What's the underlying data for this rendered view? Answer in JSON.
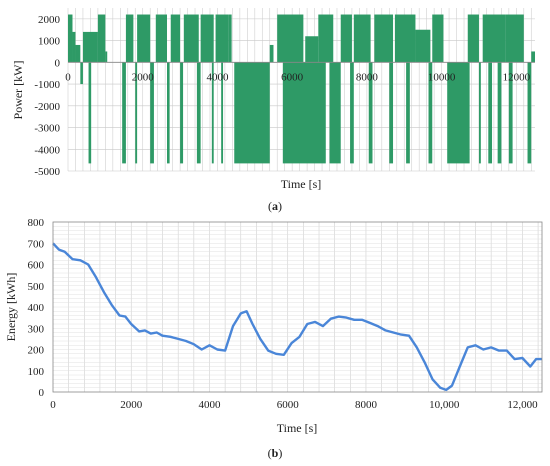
{
  "chart_data": [
    {
      "panel_label": "(a)",
      "type": "bar",
      "xlabel": "Time [s]",
      "ylabel": "Power [kW]",
      "xlim": [
        0,
        12500
      ],
      "ylim": [
        -5000,
        2500
      ],
      "x_ticks": [
        "0",
        "2000",
        "4000",
        "6000",
        "8000",
        "10000",
        "12000"
      ],
      "y_ticks": [
        "2000",
        "1000",
        "0",
        "-1000",
        "-2000",
        "-3000",
        "-4000",
        "-5000"
      ],
      "grid": true,
      "color": "#2e9a66",
      "segments": [
        {
          "x": [
            0,
            120
          ],
          "y": 2200
        },
        {
          "x": [
            120,
            200
          ],
          "y": 1400
        },
        {
          "x": [
            200,
            330
          ],
          "y": 800
        },
        {
          "x": [
            330,
            400
          ],
          "y": -1000
        },
        {
          "x": [
            400,
            800
          ],
          "y": 1400
        },
        {
          "x": [
            800,
            1000
          ],
          "y": 2200
        },
        {
          "x": [
            1000,
            1050
          ],
          "y": 500
        },
        {
          "x": [
            550,
            620
          ],
          "y": -4650
        },
        {
          "x": [
            1450,
            1550
          ],
          "y": -4650
        },
        {
          "x": [
            1550,
            1750
          ],
          "y": 2200
        },
        {
          "x": [
            1800,
            1850
          ],
          "y": -4650
        },
        {
          "x": [
            1850,
            2200
          ],
          "y": 2200
        },
        {
          "x": [
            2200,
            2300
          ],
          "y": -4650
        },
        {
          "x": [
            2350,
            2650
          ],
          "y": 2200
        },
        {
          "x": [
            2650,
            2720
          ],
          "y": -4650
        },
        {
          "x": [
            2750,
            3000
          ],
          "y": 2200
        },
        {
          "x": [
            3000,
            3080
          ],
          "y": -4650
        },
        {
          "x": [
            3100,
            3500
          ],
          "y": 2200
        },
        {
          "x": [
            3450,
            3550
          ],
          "y": -4650
        },
        {
          "x": [
            3550,
            3900
          ],
          "y": 2200
        },
        {
          "x": [
            3850,
            3900
          ],
          "y": -4650
        },
        {
          "x": [
            3950,
            4300
          ],
          "y": 2200
        },
        {
          "x": [
            4100,
            4150
          ],
          "y": -4650
        },
        {
          "x": [
            4300,
            4380
          ],
          "y": 2200
        },
        {
          "x": [
            4450,
            5400
          ],
          "y": -4650
        },
        {
          "x": [
            5400,
            5500
          ],
          "y": 800
        },
        {
          "x": [
            5600,
            6300
          ],
          "y": 2200
        },
        {
          "x": [
            5750,
            6900
          ],
          "y": -4650
        },
        {
          "x": [
            6350,
            6700
          ],
          "y": 1200
        },
        {
          "x": [
            6700,
            7100
          ],
          "y": 2200
        },
        {
          "x": [
            7000,
            7300
          ],
          "y": -4650
        },
        {
          "x": [
            7300,
            7600
          ],
          "y": 2200
        },
        {
          "x": [
            7550,
            7650
          ],
          "y": -4650
        },
        {
          "x": [
            7650,
            8100
          ],
          "y": 2200
        },
        {
          "x": [
            8050,
            8150
          ],
          "y": -4650
        },
        {
          "x": [
            8200,
            8700
          ],
          "y": 2200
        },
        {
          "x": [
            8600,
            8700
          ],
          "y": -4650
        },
        {
          "x": [
            8750,
            9300
          ],
          "y": 2200
        },
        {
          "x": [
            9050,
            9150
          ],
          "y": -4650
        },
        {
          "x": [
            9300,
            9700
          ],
          "y": 1500
        },
        {
          "x": [
            9650,
            9750
          ],
          "y": -4650
        },
        {
          "x": [
            9750,
            10050
          ],
          "y": 2200
        },
        {
          "x": [
            10150,
            10750
          ],
          "y": -4650
        },
        {
          "x": [
            10700,
            11000
          ],
          "y": 2200
        },
        {
          "x": [
            11000,
            11050
          ],
          "y": -4650
        },
        {
          "x": [
            11100,
            11700
          ],
          "y": 2200
        },
        {
          "x": [
            11250,
            11350
          ],
          "y": -4650
        },
        {
          "x": [
            11500,
            11600
          ],
          "y": -4650
        },
        {
          "x": [
            11700,
            12200
          ],
          "y": 2200
        },
        {
          "x": [
            11800,
            11900
          ],
          "y": -4650
        },
        {
          "x": [
            12300,
            12400
          ],
          "y": -4650
        },
        {
          "x": [
            12400,
            12500
          ],
          "y": 500
        }
      ]
    },
    {
      "panel_label": "(b)",
      "type": "line",
      "xlabel": "Time [s]",
      "ylabel": "Energy [kWh]",
      "xlim": [
        0,
        12500
      ],
      "ylim": [
        0,
        800
      ],
      "x_ticks": [
        "0",
        "2000",
        "4000",
        "6000",
        "8000",
        "10,000",
        "12,000"
      ],
      "y_ticks": [
        "800",
        "700",
        "600",
        "500",
        "400",
        "300",
        "200",
        "100",
        "0"
      ],
      "grid": true,
      "color": "#4a86d8",
      "series": [
        {
          "x": [
            0,
            150,
            300,
            500,
            700,
            900,
            1100,
            1300,
            1500,
            1700,
            1850,
            2000,
            2200,
            2350,
            2500,
            2650,
            2800,
            3000,
            3200,
            3400,
            3600,
            3800,
            4000,
            4200,
            4400,
            4600,
            4800,
            4950,
            5100,
            5300,
            5500,
            5700,
            5900,
            6100,
            6300,
            6500,
            6700,
            6900,
            7100,
            7300,
            7500,
            7700,
            7900,
            8100,
            8300,
            8500,
            8700,
            8900,
            9100,
            9300,
            9500,
            9700,
            9900,
            10050,
            10200,
            10400,
            10600,
            10800,
            11000,
            11200,
            11400,
            11600,
            11800,
            12000,
            12200,
            12350,
            12500
          ],
          "y": [
            700,
            670,
            660,
            625,
            620,
            600,
            540,
            470,
            410,
            360,
            355,
            320,
            285,
            290,
            275,
            280,
            265,
            260,
            250,
            240,
            225,
            200,
            220,
            200,
            195,
            310,
            370,
            380,
            320,
            250,
            195,
            180,
            175,
            230,
            260,
            320,
            330,
            310,
            345,
            355,
            350,
            340,
            340,
            325,
            310,
            290,
            280,
            270,
            265,
            210,
            140,
            60,
            20,
            10,
            30,
            120,
            210,
            220,
            200,
            210,
            195,
            195,
            155,
            160,
            120,
            155,
            155
          ]
        }
      ]
    }
  ]
}
